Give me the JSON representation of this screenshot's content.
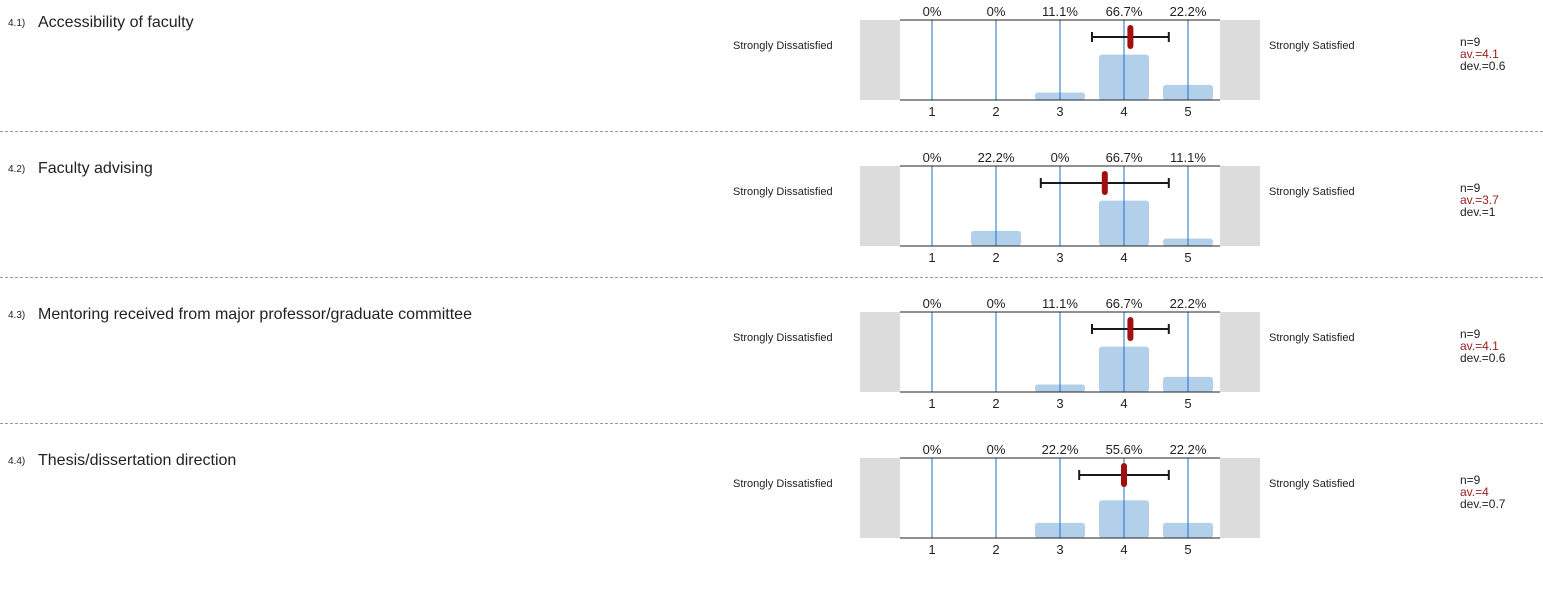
{
  "scale": {
    "left_label": "Strongly Dissatisfied",
    "right_label": "Strongly Satisfied",
    "ticks": [
      "1",
      "2",
      "3",
      "4",
      "5"
    ]
  },
  "colors": {
    "bar": "#b3d0ea",
    "grid": "#1f6fc8",
    "side": "#dcdcdc",
    "mean": "#a01010",
    "whisker": "#1a1a1a",
    "avg_text": "#9b1b1b"
  },
  "chart_data": [
    {
      "type": "bar",
      "id": "4.1)",
      "title": "Accessibility of faculty",
      "categories": [
        "1",
        "2",
        "3",
        "4",
        "5"
      ],
      "values": [
        0,
        0,
        11.1,
        66.7,
        22.2
      ],
      "value_labels": [
        "0%",
        "0%",
        "11.1%",
        "66.7%",
        "22.2%"
      ],
      "mean": 4.1,
      "dev": 0.6,
      "n_label": "n=9",
      "avg_label": "av.=4.1",
      "dev_label": "dev.=0.6",
      "ylim": [
        0,
        100
      ]
    },
    {
      "type": "bar",
      "id": "4.2)",
      "title": "Faculty advising",
      "categories": [
        "1",
        "2",
        "3",
        "4",
        "5"
      ],
      "values": [
        0,
        22.2,
        0,
        66.7,
        11.1
      ],
      "value_labels": [
        "0%",
        "22.2%",
        "0%",
        "66.7%",
        "11.1%"
      ],
      "mean": 3.7,
      "dev": 1,
      "n_label": "n=9",
      "avg_label": "av.=3.7",
      "dev_label": "dev.=1",
      "ylim": [
        0,
        100
      ]
    },
    {
      "type": "bar",
      "id": "4.3)",
      "title": "Mentoring received from major professor/graduate committee",
      "categories": [
        "1",
        "2",
        "3",
        "4",
        "5"
      ],
      "values": [
        0,
        0,
        11.1,
        66.7,
        22.2
      ],
      "value_labels": [
        "0%",
        "0%",
        "11.1%",
        "66.7%",
        "22.2%"
      ],
      "mean": 4.1,
      "dev": 0.6,
      "n_label": "n=9",
      "avg_label": "av.=4.1",
      "dev_label": "dev.=0.6",
      "ylim": [
        0,
        100
      ]
    },
    {
      "type": "bar",
      "id": "4.4)",
      "title": "Thesis/dissertation direction",
      "categories": [
        "1",
        "2",
        "3",
        "4",
        "5"
      ],
      "values": [
        0,
        0,
        22.2,
        55.6,
        22.2
      ],
      "value_labels": [
        "0%",
        "0%",
        "22.2%",
        "55.6%",
        "22.2%"
      ],
      "mean": 4,
      "dev": 0.7,
      "n_label": "n=9",
      "avg_label": "av.=4",
      "dev_label": "dev.=0.7",
      "ylim": [
        0,
        100
      ]
    }
  ]
}
